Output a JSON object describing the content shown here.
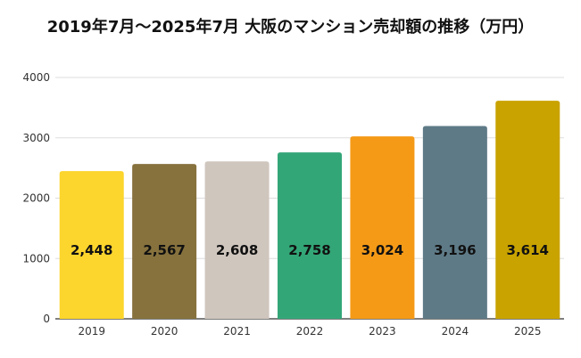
{
  "chart_data": {
    "type": "bar",
    "title": "2019年7月～2025年7月 大阪のマンション売却額の推移（万円）",
    "categories": [
      "2019",
      "2020",
      "2021",
      "2022",
      "2023",
      "2024",
      "2025"
    ],
    "values": [
      2448,
      2567,
      2608,
      2758,
      3024,
      3196,
      3614
    ],
    "value_labels": [
      "2,448",
      "2,567",
      "2,608",
      "2,758",
      "3,024",
      "3,196",
      "3,614"
    ],
    "bar_colors": [
      "#fcd52d",
      "#87723e",
      "#cfc6be",
      "#33a677",
      "#f59a17",
      "#5e7a87",
      "#c9a300"
    ],
    "xlabel": "",
    "ylabel": "",
    "ylim": [
      0,
      4000
    ],
    "yticks": [
      0,
      1000,
      2000,
      3000,
      4000
    ],
    "ytick_labels": [
      "0",
      "1000",
      "2000",
      "3000",
      "4000"
    ],
    "grid": true,
    "grid_color": "#dddddd",
    "axis_color": "#333333"
  }
}
